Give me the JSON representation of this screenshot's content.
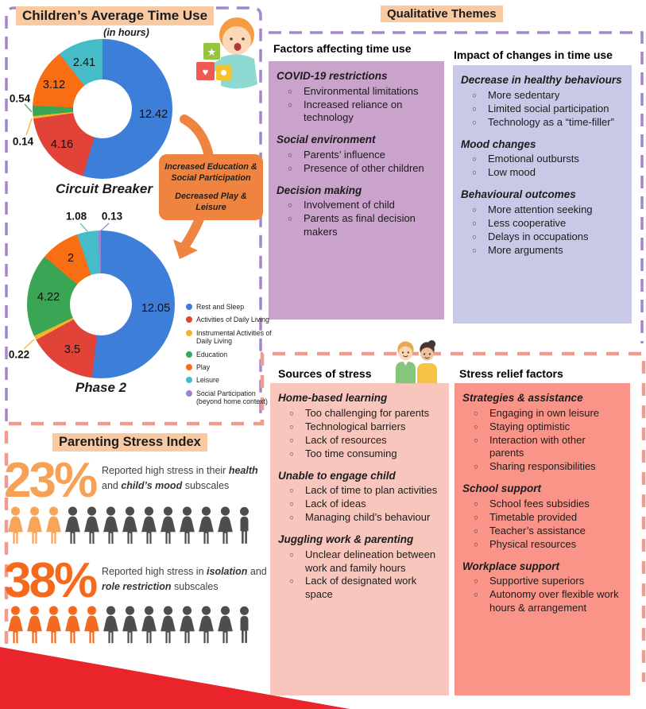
{
  "palette": {
    "blue": "#3d7ed9",
    "red": "#e14338",
    "yellow": "#f2b42e",
    "green": "#3aa655",
    "orange": "#f96d13",
    "teal": "#45bcc8",
    "purple": "#9d7fd8",
    "icon_gray": "#4d4d4d",
    "highlight_peach": "#f9c9a2",
    "callout_orange": "#ef8440",
    "dash_purple": "#a487cd",
    "dash_pink": "#f09b90",
    "ribbon_red": "#e9252b",
    "panel_purple": "#c9a3cc",
    "panel_lavender": "#c7c9e6",
    "panel_pink": "#f9c6bd",
    "panel_salmon": "#fb9488"
  },
  "header": {
    "left_title": "Children’s Average Time Use",
    "left_subtitle": "(in hours)",
    "right_title": "Qualitative Themes"
  },
  "chart_data": [
    {
      "type": "pie",
      "variant": "donut",
      "title": "Circuit Breaker",
      "unit": "hours",
      "categories": [
        "Rest and Sleep",
        "Activities of Daily Living",
        "Instrumental Activities of Daily Living",
        "Education",
        "Play",
        "Leisure"
      ],
      "values": [
        12.42,
        4.16,
        0.14,
        0.54,
        3.12,
        2.41
      ],
      "labels": [
        "12.42",
        "4.16",
        "0.14",
        "0.54",
        "3.12",
        "2.41"
      ],
      "colors": [
        "#3d7ed9",
        "#e14338",
        "#f2b42e",
        "#3aa655",
        "#f96d13",
        "#45bcc8"
      ]
    },
    {
      "type": "pie",
      "variant": "donut",
      "title": "Phase 2",
      "unit": "hours",
      "categories": [
        "Rest and Sleep",
        "Activities of Daily Living",
        "Instrumental Activities of Daily Living",
        "Education",
        "Play",
        "Leisure",
        "Social Participation (beyond home context)"
      ],
      "values": [
        12.05,
        3.5,
        0.22,
        4.22,
        2,
        1.08,
        0.13
      ],
      "labels": [
        "12.05",
        "3.5",
        "0.22",
        "4.22",
        "2",
        "1.08",
        "0.13"
      ],
      "colors": [
        "#3d7ed9",
        "#e14338",
        "#f2b42e",
        "#3aa655",
        "#f96d13",
        "#45bcc8",
        "#9d7fd8"
      ]
    }
  ],
  "legend": {
    "items": [
      {
        "label": "Rest and Sleep",
        "color": "#3d7ed9"
      },
      {
        "label": "Activities of Daily Living",
        "color": "#e14338"
      },
      {
        "label": "Instrumental Activities of Daily Living",
        "color": "#f2b42e"
      },
      {
        "label": "Education",
        "color": "#3aa655"
      },
      {
        "label": "Play",
        "color": "#f96d13"
      },
      {
        "label": "Leisure",
        "color": "#45bcc8"
      },
      {
        "label": "Social Participation (beyond home context)",
        "color": "#9d7fd8"
      }
    ]
  },
  "callout": {
    "line1": "Increased Education & Social Participation",
    "line2": "Decreased Play & Leisure"
  },
  "panels": [
    {
      "header": "Factors affecting time use",
      "bg": "#c9a3cc",
      "sections": [
        {
          "title": "COVID-19 restrictions",
          "bullets": [
            "Environmental limitations",
            "Increased reliance on technology"
          ]
        },
        {
          "title": "Social environment",
          "bullets": [
            "Parents’ influence",
            "Presence of other children"
          ]
        },
        {
          "title": "Decision making",
          "bullets": [
            "Involvement of child",
            "Parents as final decision makers"
          ]
        }
      ]
    },
    {
      "header": "Impact of changes in time use",
      "bg": "#c7c9e6",
      "sections": [
        {
          "title": "Decrease in healthy behaviours",
          "bullets": [
            "More sedentary",
            "Limited social participation",
            "Technology as a “time-filler”"
          ]
        },
        {
          "title": "Mood changes",
          "bullets": [
            "Emotional outbursts",
            "Low mood"
          ]
        },
        {
          "title": "Behavioural outcomes",
          "bullets": [
            "More attention seeking",
            "Less cooperative",
            "Delays in occupations",
            "More arguments"
          ]
        }
      ]
    },
    {
      "header": "Sources of stress",
      "bg": "#f9c6bd",
      "sections": [
        {
          "title": "Home-based learning",
          "bullets": [
            "Too challenging for parents",
            "Technological barriers",
            "Lack of resources",
            "Too time consuming"
          ]
        },
        {
          "title": "Unable to engage child",
          "bullets": [
            "Lack of time to plan activities",
            "Lack of ideas",
            "Managing child’s behaviour"
          ]
        },
        {
          "title": "Juggling work & parenting",
          "bullets": [
            "Unclear delineation between work and family hours",
            "Lack of designated work space"
          ]
        }
      ]
    },
    {
      "header": "Stress relief factors",
      "bg": "#fb9488",
      "sections": [
        {
          "title": "Strategies & assistance",
          "bullets": [
            "Engaging in own leisure",
            "Staying optimistic",
            "Interaction with other parents",
            "Sharing responsibilities"
          ]
        },
        {
          "title": "School support",
          "bullets": [
            "School fees subsidies",
            "Timetable provided",
            "Teacher’s assistance",
            "Physical resources"
          ]
        },
        {
          "title": "Workplace support",
          "bullets": [
            "Supportive superiors",
            "Autonomy over flexible work hours & arrangement"
          ]
        }
      ]
    }
  ],
  "stress_index": {
    "title": "Parenting Stress Index",
    "stats": [
      {
        "percent": "23%",
        "color": "#f6a156",
        "text_parts": {
          "a": "Reported high stress in their ",
          "b": "health",
          "c": " and ",
          "d": "child’s mood",
          "e": " subscales"
        },
        "icons": {
          "highlighted": 3,
          "total": 13,
          "highlight_color": "#f6a55b"
        }
      },
      {
        "percent": "38%",
        "color": "#f4691c",
        "text_parts": {
          "a": "Reported high stress in ",
          "b": "isolation",
          "c": " and ",
          "d": "role restriction",
          "e": " subscales"
        },
        "icons": {
          "highlighted": 5,
          "total": 13,
          "highlight_color": "#f2691f"
        }
      }
    ]
  }
}
